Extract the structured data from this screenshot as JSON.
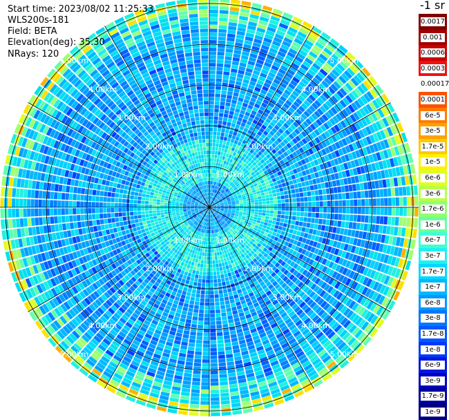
{
  "header": {
    "start_time": "Start time: 2023/08/02 11:25:33",
    "instrument": "WLS200s-181",
    "field": "Field: BETA",
    "elevation": "Elevation(deg): 35.30",
    "nrays": "NRays: 120"
  },
  "colorbar": {
    "unit": "-1 sr",
    "labels": [
      "0.0017",
      "0.001",
      "0.0006",
      "0.0003",
      "0.00017",
      "0.0001",
      "6e-5",
      "3e-5",
      "1.7e-5",
      "1e-5",
      "6e-6",
      "3e-6",
      "1.7e-6",
      "1e-6",
      "6e-7",
      "3e-7",
      "1.7e-7",
      "1e-7",
      "6e-8",
      "3e-8",
      "1.7e-8",
      "1e-8",
      "6e-9",
      "3e-9",
      "1.7e-9",
      "1e-9"
    ],
    "colors": [
      "#800000",
      "#a00000",
      "#c80000",
      "#f01010",
      "#ffffff",
      "#ff5000",
      "#ff7a00",
      "#ffa000",
      "#ffc800",
      "#fff000",
      "#e0ff20",
      "#b8ff48",
      "#90ff70",
      "#68ffa0",
      "#40ffd0",
      "#20f0f0",
      "#00d8ff",
      "#00b8ff",
      "#0098ff",
      "#0078ff",
      "#0058ff",
      "#0038ff",
      "#0018e0",
      "#0000c0",
      "#0000a0",
      "#000080"
    ]
  },
  "range_labels": [
    "1.00km",
    "2.00km",
    "3.00km",
    "4.00km",
    "5.00km"
  ],
  "rays": 120
}
